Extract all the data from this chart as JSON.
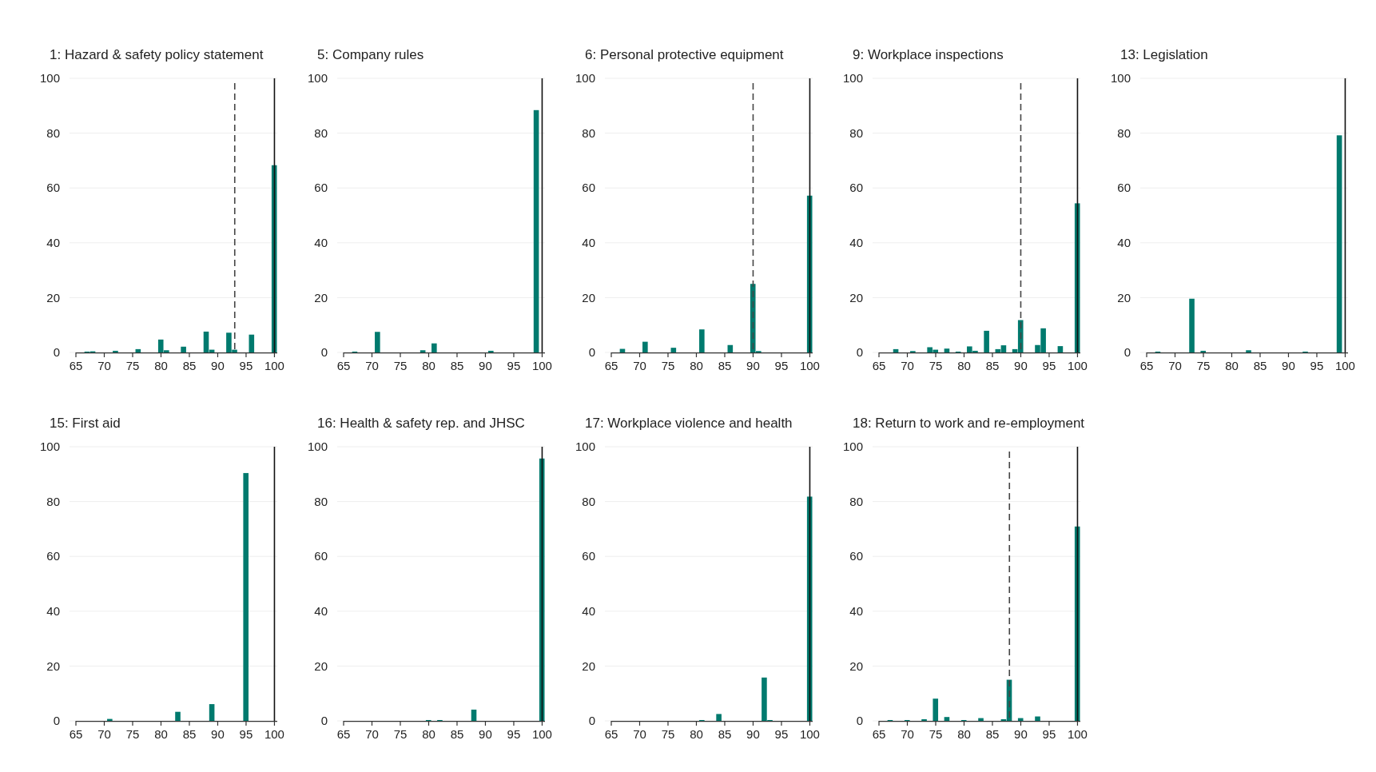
{
  "chart_data": [
    {
      "type": "histogram",
      "title": "1: Hazard & safety policy statement",
      "color": "#007a6e",
      "bins": [
        65.5,
        66.5,
        67.5,
        68.5,
        69.5,
        70.5,
        71.5,
        72.5,
        73.5,
        74.5,
        75.5,
        76.5,
        77.5,
        78.5,
        79.5,
        80.5,
        81.5,
        82.5,
        83.5,
        84.5,
        85.5,
        86.5,
        87.5,
        88.5,
        89.5,
        90.5,
        91.5,
        92.5,
        93.5,
        94.5,
        95.5,
        96.5,
        97.5,
        98.5,
        99.5,
        100.5
      ],
      "values": [
        0,
        0.3,
        0.4,
        0,
        0,
        0,
        0.6,
        0,
        0,
        0,
        1.2,
        0,
        0,
        0,
        4.7,
        0.8,
        0,
        0,
        2.1,
        0,
        0,
        0,
        7.6,
        1.0,
        0,
        0,
        7.2,
        1.0,
        0,
        0,
        6.5,
        0,
        0,
        0,
        68.3
      ],
      "xlim": [
        65,
        100.5
      ],
      "xticks": [
        65,
        70,
        75,
        80,
        85,
        90,
        95,
        100
      ],
      "ylim": [
        0,
        100
      ],
      "yticks": [
        0,
        20,
        40,
        60,
        80,
        100
      ],
      "grid": "y",
      "ref_lines": [
        {
          "axis": "x",
          "value": 93,
          "line_style": "dashed",
          "color": "#444444"
        },
        {
          "axis": "x",
          "value": 100,
          "line_style": "solid",
          "color": "#111111"
        }
      ]
    },
    {
      "type": "histogram",
      "title": "5: Company rules",
      "color": "#007a6e",
      "bins": [
        65.5,
        66.5,
        67.5,
        68.5,
        69.5,
        70.5,
        71.5,
        72.5,
        73.5,
        74.5,
        75.5,
        76.5,
        77.5,
        78.5,
        79.5,
        80.5,
        81.5,
        82.5,
        83.5,
        84.5,
        85.5,
        86.5,
        87.5,
        88.5,
        89.5,
        90.5,
        91.5,
        92.5,
        93.5,
        94.5,
        95.5,
        96.5,
        97.5,
        98.5,
        99.5,
        100.5
      ],
      "values": [
        0,
        0.3,
        0,
        0,
        0,
        7.5,
        0,
        0,
        0,
        0,
        0,
        0,
        0,
        0.8,
        0,
        3.3,
        0,
        0,
        0,
        0,
        0,
        0,
        0,
        0,
        0,
        0.6,
        0,
        0,
        0,
        0,
        0,
        0,
        0,
        88.4,
        0
      ],
      "xlim": [
        65,
        100.5
      ],
      "xticks": [
        65,
        70,
        75,
        80,
        85,
        90,
        95,
        100
      ],
      "ylim": [
        0,
        100
      ],
      "yticks": [
        0,
        20,
        40,
        60,
        80,
        100
      ],
      "grid": "y",
      "ref_lines": [
        {
          "axis": "x",
          "value": 100,
          "line_style": "solid",
          "color": "#111111"
        }
      ]
    },
    {
      "type": "histogram",
      "title": "6: Personal protective equipment",
      "color": "#007a6e",
      "bins": [
        65.5,
        66.5,
        67.5,
        68.5,
        69.5,
        70.5,
        71.5,
        72.5,
        73.5,
        74.5,
        75.5,
        76.5,
        77.5,
        78.5,
        79.5,
        80.5,
        81.5,
        82.5,
        83.5,
        84.5,
        85.5,
        86.5,
        87.5,
        88.5,
        89.5,
        90.5,
        91.5,
        92.5,
        93.5,
        94.5,
        95.5,
        96.5,
        97.5,
        98.5,
        99.5,
        100.5
      ],
      "values": [
        0,
        1.3,
        0,
        0,
        0,
        3.9,
        0,
        0,
        0,
        0,
        1.7,
        0,
        0,
        0,
        0,
        8.4,
        0,
        0,
        0,
        0,
        2.7,
        0,
        0,
        0,
        25,
        0.5,
        0,
        0,
        0,
        0,
        0,
        0,
        0,
        0,
        57.2
      ],
      "xlim": [
        65,
        100.5
      ],
      "xticks": [
        65,
        70,
        75,
        80,
        85,
        90,
        95,
        100
      ],
      "ylim": [
        0,
        100
      ],
      "yticks": [
        0,
        20,
        40,
        60,
        80,
        100
      ],
      "grid": "y",
      "ref_lines": [
        {
          "axis": "x",
          "value": 90,
          "line_style": "dashed",
          "color": "#444444"
        },
        {
          "axis": "x",
          "value": 100,
          "line_style": "solid",
          "color": "#111111"
        }
      ]
    },
    {
      "type": "histogram",
      "title": "9: Workplace inspections",
      "color": "#007a6e",
      "bins": [
        65.5,
        66.5,
        67.5,
        68.5,
        69.5,
        70.5,
        71.5,
        72.5,
        73.5,
        74.5,
        75.5,
        76.5,
        77.5,
        78.5,
        79.5,
        80.5,
        81.5,
        82.5,
        83.5,
        84.5,
        85.5,
        86.5,
        87.5,
        88.5,
        89.5,
        90.5,
        91.5,
        92.5,
        93.5,
        94.5,
        95.5,
        96.5,
        97.5,
        98.5,
        99.5,
        100.5
      ],
      "values": [
        0,
        0,
        1.2,
        0,
        0,
        0.5,
        0,
        0,
        1.9,
        1.0,
        0,
        1.4,
        0,
        0.3,
        0,
        2.2,
        0.6,
        0,
        7.9,
        0,
        1.2,
        2.6,
        0,
        1.2,
        11.8,
        0,
        0,
        2.7,
        8.8,
        0,
        0,
        2.3,
        0,
        0,
        54.4
      ],
      "xlim": [
        65,
        100.5
      ],
      "xticks": [
        65,
        70,
        75,
        80,
        85,
        90,
        95,
        100
      ],
      "ylim": [
        0,
        100
      ],
      "yticks": [
        0,
        20,
        40,
        60,
        80,
        100
      ],
      "grid": "y",
      "ref_lines": [
        {
          "axis": "x",
          "value": 90,
          "line_style": "dashed",
          "color": "#444444"
        },
        {
          "axis": "x",
          "value": 100,
          "line_style": "solid",
          "color": "#111111"
        }
      ]
    },
    {
      "type": "histogram",
      "title": "13: Legislation",
      "color": "#007a6e",
      "bins": [
        65.5,
        66.5,
        67.5,
        68.5,
        69.5,
        70.5,
        71.5,
        72.5,
        73.5,
        74.5,
        75.5,
        76.5,
        77.5,
        78.5,
        79.5,
        80.5,
        81.5,
        82.5,
        83.5,
        84.5,
        85.5,
        86.5,
        87.5,
        88.5,
        89.5,
        90.5,
        91.5,
        92.5,
        93.5,
        94.5,
        95.5,
        96.5,
        97.5,
        98.5,
        99.5,
        100.5
      ],
      "values": [
        0,
        0.3,
        0,
        0,
        0,
        0,
        0,
        19.6,
        0,
        0.6,
        0,
        0,
        0,
        0,
        0,
        0,
        0,
        0.8,
        0,
        0,
        0,
        0,
        0,
        0,
        0,
        0,
        0,
        0.3,
        0,
        0,
        0,
        0,
        0,
        79.2,
        0
      ],
      "xlim": [
        65,
        100.5
      ],
      "xticks": [
        65,
        70,
        75,
        80,
        85,
        90,
        95,
        100
      ],
      "ylim": [
        0,
        100
      ],
      "yticks": [
        0,
        20,
        40,
        60,
        80,
        100
      ],
      "grid": "y",
      "ref_lines": [
        {
          "axis": "x",
          "value": 100,
          "line_style": "solid",
          "color": "#111111"
        }
      ]
    },
    {
      "type": "histogram",
      "title": "15: First aid",
      "color": "#007a6e",
      "bins": [
        65.5,
        66.5,
        67.5,
        68.5,
        69.5,
        70.5,
        71.5,
        72.5,
        73.5,
        74.5,
        75.5,
        76.5,
        77.5,
        78.5,
        79.5,
        80.5,
        81.5,
        82.5,
        83.5,
        84.5,
        85.5,
        86.5,
        87.5,
        88.5,
        89.5,
        90.5,
        91.5,
        92.5,
        93.5,
        94.5,
        95.5,
        96.5,
        97.5,
        98.5,
        99.5,
        100.5
      ],
      "values": [
        0,
        0,
        0,
        0,
        0,
        0.7,
        0,
        0,
        0,
        0,
        0,
        0,
        0,
        0,
        0,
        0,
        0,
        3.3,
        0,
        0,
        0,
        0,
        0,
        6.1,
        0,
        0,
        0,
        0,
        0,
        90.4,
        0,
        0,
        0,
        0,
        0
      ],
      "xlim": [
        65,
        100.5
      ],
      "xticks": [
        65,
        70,
        75,
        80,
        85,
        90,
        95,
        100
      ],
      "ylim": [
        0,
        100
      ],
      "yticks": [
        0,
        20,
        40,
        60,
        80,
        100
      ],
      "grid": "y",
      "ref_lines": [
        {
          "axis": "x",
          "value": 100,
          "line_style": "solid",
          "color": "#111111"
        }
      ]
    },
    {
      "type": "histogram",
      "title": "16: Health & safety rep. and JHSC",
      "color": "#007a6e",
      "bins": [
        65.5,
        66.5,
        67.5,
        68.5,
        69.5,
        70.5,
        71.5,
        72.5,
        73.5,
        74.5,
        75.5,
        76.5,
        77.5,
        78.5,
        79.5,
        80.5,
        81.5,
        82.5,
        83.5,
        84.5,
        85.5,
        86.5,
        87.5,
        88.5,
        89.5,
        90.5,
        91.5,
        92.5,
        93.5,
        94.5,
        95.5,
        96.5,
        97.5,
        98.5,
        99.5,
        100.5
      ],
      "values": [
        0,
        0,
        0,
        0,
        0,
        0,
        0,
        0,
        0,
        0,
        0,
        0,
        0,
        0,
        0.3,
        0,
        0.3,
        0,
        0,
        0,
        0,
        0,
        4.1,
        0,
        0,
        0,
        0,
        0,
        0,
        0,
        0,
        0,
        0,
        0,
        95.7
      ],
      "xlim": [
        65,
        100.5
      ],
      "xticks": [
        65,
        70,
        75,
        80,
        85,
        90,
        95,
        100
      ],
      "ylim": [
        0,
        100
      ],
      "yticks": [
        0,
        20,
        40,
        60,
        80,
        100
      ],
      "grid": "y",
      "ref_lines": [
        {
          "axis": "x",
          "value": 100,
          "line_style": "solid",
          "color": "#111111"
        }
      ]
    },
    {
      "type": "histogram",
      "title": "17: Workplace violence and health",
      "color": "#007a6e",
      "bins": [
        65.5,
        66.5,
        67.5,
        68.5,
        69.5,
        70.5,
        71.5,
        72.5,
        73.5,
        74.5,
        75.5,
        76.5,
        77.5,
        78.5,
        79.5,
        80.5,
        81.5,
        82.5,
        83.5,
        84.5,
        85.5,
        86.5,
        87.5,
        88.5,
        89.5,
        90.5,
        91.5,
        92.5,
        93.5,
        94.5,
        95.5,
        96.5,
        97.5,
        98.5,
        99.5,
        100.5
      ],
      "values": [
        0,
        0,
        0,
        0,
        0,
        0,
        0,
        0,
        0,
        0,
        0,
        0,
        0,
        0,
        0,
        0.3,
        0,
        0,
        2.5,
        0,
        0,
        0,
        0,
        0,
        0,
        0,
        15.8,
        0.3,
        0,
        0,
        0,
        0,
        0,
        0,
        81.8
      ],
      "xlim": [
        65,
        100.5
      ],
      "xticks": [
        65,
        70,
        75,
        80,
        85,
        90,
        95,
        100
      ],
      "ylim": [
        0,
        100
      ],
      "yticks": [
        0,
        20,
        40,
        60,
        80,
        100
      ],
      "grid": "y",
      "ref_lines": [
        {
          "axis": "x",
          "value": 100,
          "line_style": "solid",
          "color": "#111111"
        }
      ]
    },
    {
      "type": "histogram",
      "title": "18: Return to work and re-employment",
      "color": "#007a6e",
      "bins": [
        65.5,
        66.5,
        67.5,
        68.5,
        69.5,
        70.5,
        71.5,
        72.5,
        73.5,
        74.5,
        75.5,
        76.5,
        77.5,
        78.5,
        79.5,
        80.5,
        81.5,
        82.5,
        83.5,
        84.5,
        85.5,
        86.5,
        87.5,
        88.5,
        89.5,
        90.5,
        91.5,
        92.5,
        93.5,
        94.5,
        95.5,
        96.5,
        97.5,
        98.5,
        99.5,
        100.5
      ],
      "values": [
        0,
        0.3,
        0,
        0,
        0.3,
        0,
        0,
        0.6,
        0,
        8.1,
        0,
        1.4,
        0,
        0,
        0.3,
        0,
        0,
        1.0,
        0,
        0,
        0,
        0.6,
        15,
        0,
        1.0,
        0,
        0,
        1.6,
        0,
        0,
        0,
        0,
        0,
        0,
        70.9
      ],
      "xlim": [
        65,
        100.5
      ],
      "xticks": [
        65,
        70,
        75,
        80,
        85,
        90,
        95,
        100
      ],
      "ylim": [
        0,
        100
      ],
      "yticks": [
        0,
        20,
        40,
        60,
        80,
        100
      ],
      "grid": "y",
      "ref_lines": [
        {
          "axis": "x",
          "value": 88,
          "line_style": "dashed",
          "color": "#444444"
        },
        {
          "axis": "x",
          "value": 100,
          "line_style": "solid",
          "color": "#111111"
        }
      ]
    }
  ]
}
